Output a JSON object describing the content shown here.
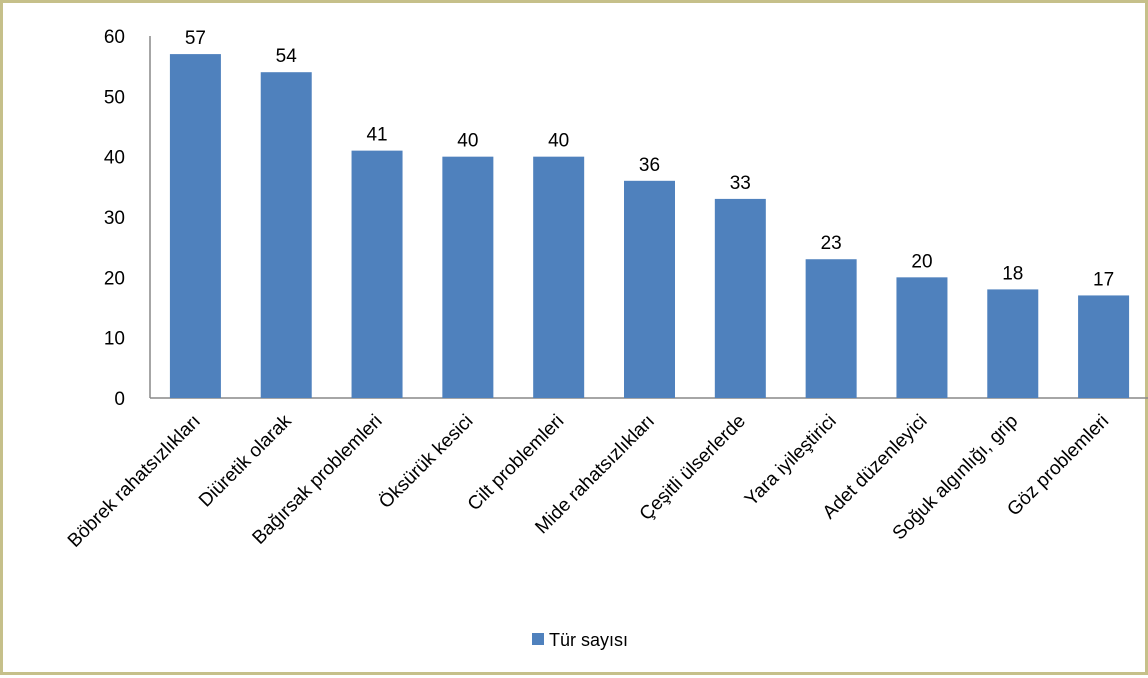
{
  "chart_data": {
    "type": "bar",
    "categories": [
      "Böbrek rahatsızlıkları",
      "Diüretik olarak",
      "Bağırsak problemleri",
      "Öksürük kesici",
      "Cilt problemleri",
      "Mide rahatsızlıkları",
      "Çeşitli ülserlerde",
      "Yara iyileştirici",
      "Adet düzenleyici",
      "Soğuk algınlığı, grip",
      "Göz problemleri"
    ],
    "series": [
      {
        "name": "Tür sayısı",
        "values": [
          57,
          54,
          41,
          40,
          40,
          36,
          33,
          23,
          20,
          18,
          17
        ],
        "color": "#4f81bd"
      }
    ],
    "ylim": [
      0,
      60
    ],
    "yticks": [
      0,
      10,
      20,
      30,
      40,
      50,
      60
    ],
    "grid": false,
    "data_labels": true,
    "legend_position": "bottom",
    "frame_color": "#c6c08a",
    "axis_color": "#888888"
  }
}
